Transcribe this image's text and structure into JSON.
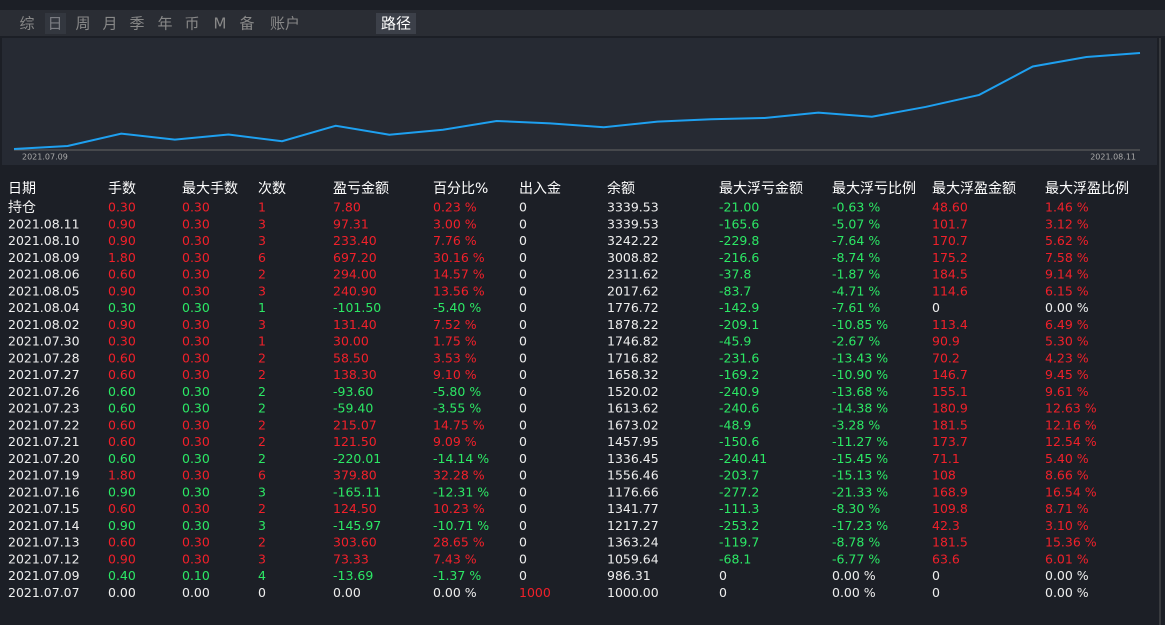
{
  "tabs": [
    "综",
    "日",
    "周",
    "月",
    "季",
    "年",
    "币",
    "M",
    "备",
    "账户"
  ],
  "active_tab": "路径",
  "chart": {
    "x_start": "2021.07.09",
    "x_end": "2021.08.11"
  },
  "table": {
    "header": [
      "日期",
      "手数",
      "最大手数",
      "次数",
      "盈亏金额",
      "百分比%",
      "出入金",
      "余额",
      "最大浮亏金额",
      "最大浮亏比例",
      "最大浮盈金额",
      "最大浮盈比例"
    ],
    "rows": [
      [
        "持仓",
        "0.30",
        "0.30",
        "1",
        "7.80",
        "0.23 %",
        "0",
        "3339.53",
        "-21.00",
        "-0.63 %",
        "48.60",
        "1.46 %"
      ],
      [
        "2021.08.11",
        "0.90",
        "0.30",
        "3",
        "97.31",
        "3.00 %",
        "0",
        "3339.53",
        "-165.6",
        "-5.07 %",
        "101.7",
        "3.12 %"
      ],
      [
        "2021.08.10",
        "0.90",
        "0.30",
        "3",
        "233.40",
        "7.76 %",
        "0",
        "3242.22",
        "-229.8",
        "-7.64 %",
        "170.7",
        "5.62 %"
      ],
      [
        "2021.08.09",
        "1.80",
        "0.30",
        "6",
        "697.20",
        "30.16 %",
        "0",
        "3008.82",
        "-216.6",
        "-8.74 %",
        "175.2",
        "7.58 %"
      ],
      [
        "2021.08.06",
        "0.60",
        "0.30",
        "2",
        "294.00",
        "14.57 %",
        "0",
        "2311.62",
        "-37.8",
        "-1.87 %",
        "184.5",
        "9.14 %"
      ],
      [
        "2021.08.05",
        "0.90",
        "0.30",
        "3",
        "240.90",
        "13.56 %",
        "0",
        "2017.62",
        "-83.7",
        "-4.71 %",
        "114.6",
        "6.15 %"
      ],
      [
        "2021.08.04",
        "0.30",
        "0.30",
        "1",
        "-101.50",
        "-5.40 %",
        "0",
        "1776.72",
        "-142.9",
        "-7.61 %",
        "0",
        "0.00 %"
      ],
      [
        "2021.08.02",
        "0.90",
        "0.30",
        "3",
        "131.40",
        "7.52 %",
        "0",
        "1878.22",
        "-209.1",
        "-10.85 %",
        "113.4",
        "6.49 %"
      ],
      [
        "2021.07.30",
        "0.30",
        "0.30",
        "1",
        "30.00",
        "1.75 %",
        "0",
        "1746.82",
        "-45.9",
        "-2.67 %",
        "90.9",
        "5.30 %"
      ],
      [
        "2021.07.28",
        "0.60",
        "0.30",
        "2",
        "58.50",
        "3.53 %",
        "0",
        "1716.82",
        "-231.6",
        "-13.43 %",
        "70.2",
        "4.23 %"
      ],
      [
        "2021.07.27",
        "0.60",
        "0.30",
        "2",
        "138.30",
        "9.10 %",
        "0",
        "1658.32",
        "-169.2",
        "-10.90 %",
        "146.7",
        "9.45 %"
      ],
      [
        "2021.07.26",
        "0.60",
        "0.30",
        "2",
        "-93.60",
        "-5.80 %",
        "0",
        "1520.02",
        "-240.9",
        "-13.68 %",
        "155.1",
        "9.61 %"
      ],
      [
        "2021.07.23",
        "0.60",
        "0.30",
        "2",
        "-59.40",
        "-3.55 %",
        "0",
        "1613.62",
        "-240.6",
        "-14.38 %",
        "180.9",
        "12.63 %"
      ],
      [
        "2021.07.22",
        "0.60",
        "0.30",
        "2",
        "215.07",
        "14.75 %",
        "0",
        "1673.02",
        "-48.9",
        "-3.28 %",
        "181.5",
        "12.16 %"
      ],
      [
        "2021.07.21",
        "0.60",
        "0.30",
        "2",
        "121.50",
        "9.09 %",
        "0",
        "1457.95",
        "-150.6",
        "-11.27 %",
        "173.7",
        "12.54 %"
      ],
      [
        "2021.07.20",
        "0.60",
        "0.30",
        "2",
        "-220.01",
        "-14.14 %",
        "0",
        "1336.45",
        "-240.41",
        "-15.45 %",
        "71.1",
        "5.40 %"
      ],
      [
        "2021.07.19",
        "1.80",
        "0.30",
        "6",
        "379.80",
        "32.28 %",
        "0",
        "1556.46",
        "-203.7",
        "-15.13 %",
        "108",
        "8.66 %"
      ],
      [
        "2021.07.16",
        "0.90",
        "0.30",
        "3",
        "-165.11",
        "-12.31 %",
        "0",
        "1176.66",
        "-277.2",
        "-21.33 %",
        "168.9",
        "16.54 %"
      ],
      [
        "2021.07.15",
        "0.60",
        "0.30",
        "2",
        "124.50",
        "10.23 %",
        "0",
        "1341.77",
        "-111.3",
        "-8.30 %",
        "109.8",
        "8.71 %"
      ],
      [
        "2021.07.14",
        "0.90",
        "0.30",
        "3",
        "-145.97",
        "-10.71 %",
        "0",
        "1217.27",
        "-253.2",
        "-17.23 %",
        "42.3",
        "3.10 %"
      ],
      [
        "2021.07.13",
        "0.60",
        "0.30",
        "2",
        "303.60",
        "28.65 %",
        "0",
        "1363.24",
        "-119.7",
        "-8.78 %",
        "181.5",
        "15.36 %"
      ],
      [
        "2021.07.12",
        "0.90",
        "0.30",
        "3",
        "73.33",
        "7.43 %",
        "0",
        "1059.64",
        "-68.1",
        "-6.77 %",
        "63.6",
        "6.01 %"
      ],
      [
        "2021.07.09",
        "0.40",
        "0.10",
        "4",
        "-13.69",
        "-1.37 %",
        "0",
        "986.31",
        "0",
        "0.00 %",
        "0",
        "0.00 %"
      ],
      [
        "2021.07.07",
        "0.00",
        "0.00",
        "0",
        "0.00",
        "0.00 %",
        "1000",
        "1000.00",
        "0",
        "0.00 %",
        "0",
        "0.00 %"
      ]
    ]
  }
}
